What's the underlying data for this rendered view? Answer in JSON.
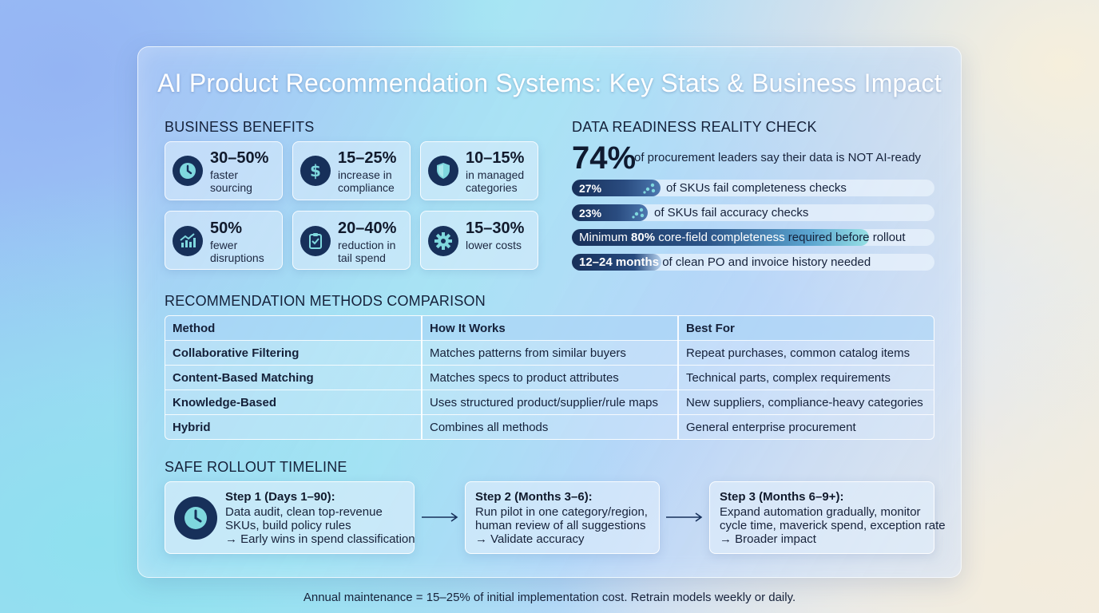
{
  "title": "AI Product Recommendation Systems: Key Stats & Business Impact",
  "benefits": {
    "heading": "BUSINESS BENEFITS",
    "items": [
      {
        "value": "30–50%",
        "line1": "faster",
        "line2": "sourcing",
        "icon": "clock-icon"
      },
      {
        "value": "15–25%",
        "line1": "increase in",
        "line2": "compliance",
        "icon": "dollar-icon"
      },
      {
        "value": "10–15%",
        "line1": "in managed",
        "line2": "categories",
        "icon": "shield-icon"
      },
      {
        "value": "50%",
        "line1": "fewer",
        "line2": "disruptions",
        "icon": "chart-up-icon"
      },
      {
        "value": "20–40%",
        "line1": "reduction in",
        "line2": "tail spend",
        "icon": "clipboard-check-icon"
      },
      {
        "value": "15–30%",
        "line1": "lower costs",
        "line2": "",
        "icon": "gear-icon"
      }
    ]
  },
  "readiness": {
    "heading": "DATA READINESS REALITY CHECK",
    "headline_value": "74%",
    "headline_text": "of procurement leaders say their data is NOT AI-ready",
    "bars": [
      {
        "pct": "27%",
        "text": "of SKUs fail completeness checks",
        "fraction": 0.27
      },
      {
        "pct": "23%",
        "text": "of SKUs fail accuracy checks",
        "fraction": 0.23
      }
    ],
    "min_pre": "Minimum ",
    "min_value": "80%",
    "min_mid": " core-field completeness",
    "min_post": " required before rollout",
    "history_value": "12–24 months",
    "history_text": " of clean PO and invoice history needed"
  },
  "methods": {
    "heading": "RECOMMENDATION METHODS COMPARISON",
    "columns": [
      "Method",
      "How It Works",
      "Best For"
    ],
    "rows": [
      [
        "Collaborative Filtering",
        "Matches patterns from similar buyers",
        "Repeat purchases, common catalog items"
      ],
      [
        "Content-Based Matching",
        "Matches specs to product attributes",
        "Technical parts, complex requirements"
      ],
      [
        "Knowledge-Based",
        "Uses structured product/supplier/rule maps",
        "New suppliers, compliance-heavy categories"
      ],
      [
        "Hybrid",
        "Combines all methods",
        "General enterprise procurement"
      ]
    ]
  },
  "timeline": {
    "heading": "SAFE ROLLOUT TIMELINE",
    "steps": [
      {
        "title": "Step 1 (Days 1–90):",
        "line1": "Data audit, clean top-revenue",
        "line2": "SKUs, build policy rules",
        "line3": "→ Early wins in spend classification"
      },
      {
        "title": "Step 2 (Months 3–6):",
        "line1": "Run pilot in one category/region,",
        "line2": "human review of all suggestions",
        "line3": "→ Validate accuracy"
      },
      {
        "title": "Step 3 (Months 6–9+):",
        "line1": "Expand automation gradually, monitor",
        "line2": "cycle time, maverick spend, exception rate",
        "line3": "→ Broader impact"
      }
    ]
  },
  "footer": "Annual maintenance = 15–25% of initial implementation cost. Retrain models weekly or daily.",
  "colors": {
    "accent": "#17305a",
    "icon_fg": "#7fd8de",
    "title": "#ffffff"
  }
}
